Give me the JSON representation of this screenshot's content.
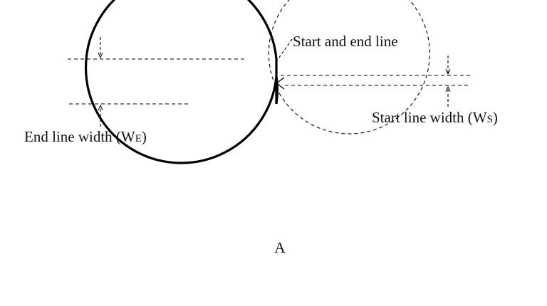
{
  "diagram": {
    "labels": {
      "start_end_line": "Start and end line",
      "start_width_main": "Start line width (W",
      "start_width_sub": "S",
      "start_width_close": ")",
      "end_width_main": "End line width (W",
      "end_width_sub": "E",
      "end_width_close": ")",
      "point_a": "A"
    },
    "colors": {
      "stroke": "#000000",
      "fill": "#ffffff",
      "text": "#111111"
    }
  }
}
